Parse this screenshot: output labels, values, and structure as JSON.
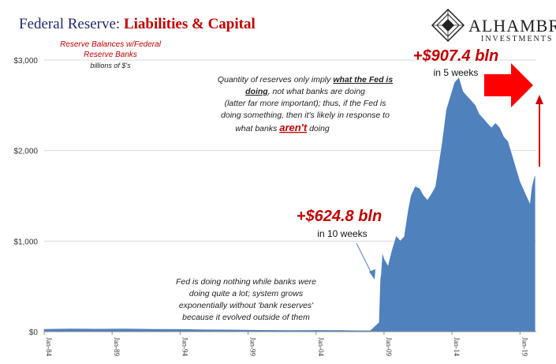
{
  "chart_data": {
    "type": "area",
    "title_part1": "Federal Reserve: ",
    "title_part2": "Liabilities & Capital",
    "series_label_line1": "Reserve Balances w/Federal",
    "series_label_line2": "Reserve Banks",
    "unit_label": "billions of $'s",
    "y_ticks": [
      "$0",
      "$1,000",
      "$2,000",
      "$3,000"
    ],
    "y_tick_values": [
      0,
      1000,
      2000,
      3000
    ],
    "ylim": [
      0,
      3000
    ],
    "x_tick_labels": [
      "Jan-84",
      "Jan-89",
      "Jan-94",
      "Jan-99",
      "Jan-04",
      "Jan-09",
      "Jan-14",
      "Jan-19"
    ],
    "x_tick_years": [
      1984,
      1989,
      1994,
      1999,
      2004,
      2009,
      2014,
      2019
    ],
    "xlim": [
      1984,
      2020.2
    ],
    "color": "#4f81bd",
    "series": [
      {
        "x": [
          1984,
          1986,
          1988,
          1990,
          1992,
          1994,
          1996,
          1998,
          2000,
          2002,
          2004,
          2006,
          2007,
          2008.0,
          2008.65,
          2008.75,
          2008.8,
          2008.9,
          2009.0,
          2009.3,
          2009.6,
          2009.9,
          2010.2,
          2010.5,
          2010.8,
          2011.0,
          2011.3,
          2011.6,
          2011.9,
          2012.2,
          2012.5,
          2012.8,
          2013.0,
          2013.3,
          2013.6,
          2013.9,
          2014.2,
          2014.5,
          2014.8,
          2015.1,
          2015.4,
          2015.7,
          2016.0,
          2016.3,
          2016.6,
          2016.9,
          2017.2,
          2017.5,
          2017.8,
          2018.1,
          2018.4,
          2018.7,
          2019.0,
          2019.3,
          2019.6,
          2019.75,
          2019.9,
          2020.1
        ],
        "values": [
          25,
          30,
          28,
          30,
          26,
          24,
          20,
          18,
          15,
          12,
          14,
          12,
          10,
          10,
          100,
          580,
          630,
          850,
          800,
          720,
          900,
          1050,
          1000,
          1050,
          1350,
          1500,
          1600,
          1580,
          1500,
          1450,
          1520,
          1600,
          1800,
          2100,
          2450,
          2600,
          2750,
          2800,
          2650,
          2600,
          2550,
          2500,
          2400,
          2350,
          2300,
          2250,
          2300,
          2250,
          2150,
          2100,
          1950,
          1800,
          1650,
          1550,
          1450,
          1400,
          1600,
          1720
        ]
      }
    ],
    "annotations": {
      "note_top": [
        "Quantity of reserves only imply ",
        "what the Fed is",
        "doing",
        ", not what banks are doing",
        "(latter far more important); thus, if the Fed is",
        "doing something, then it's likely in response to",
        "what banks ",
        "aren't",
        " doing"
      ],
      "note_bottom": [
        "Fed is doing nothing while banks were",
        "doing quite a lot; system grows",
        "exponentially without 'bank reserves'",
        "because it evolved outside of them"
      ],
      "big_1": "+$907.4 bln",
      "big_1_sub": "in 5 weeks",
      "big_2": "+$624.8 bln",
      "big_2_sub": "in 10 weeks"
    }
  },
  "logo": {
    "name": "ALHAMBRA",
    "sub": "INVESTMENTS"
  },
  "colors": {
    "accent_red": "#c00000",
    "title_blue": "#1f2a6b",
    "area_blue": "#4f81bd"
  }
}
